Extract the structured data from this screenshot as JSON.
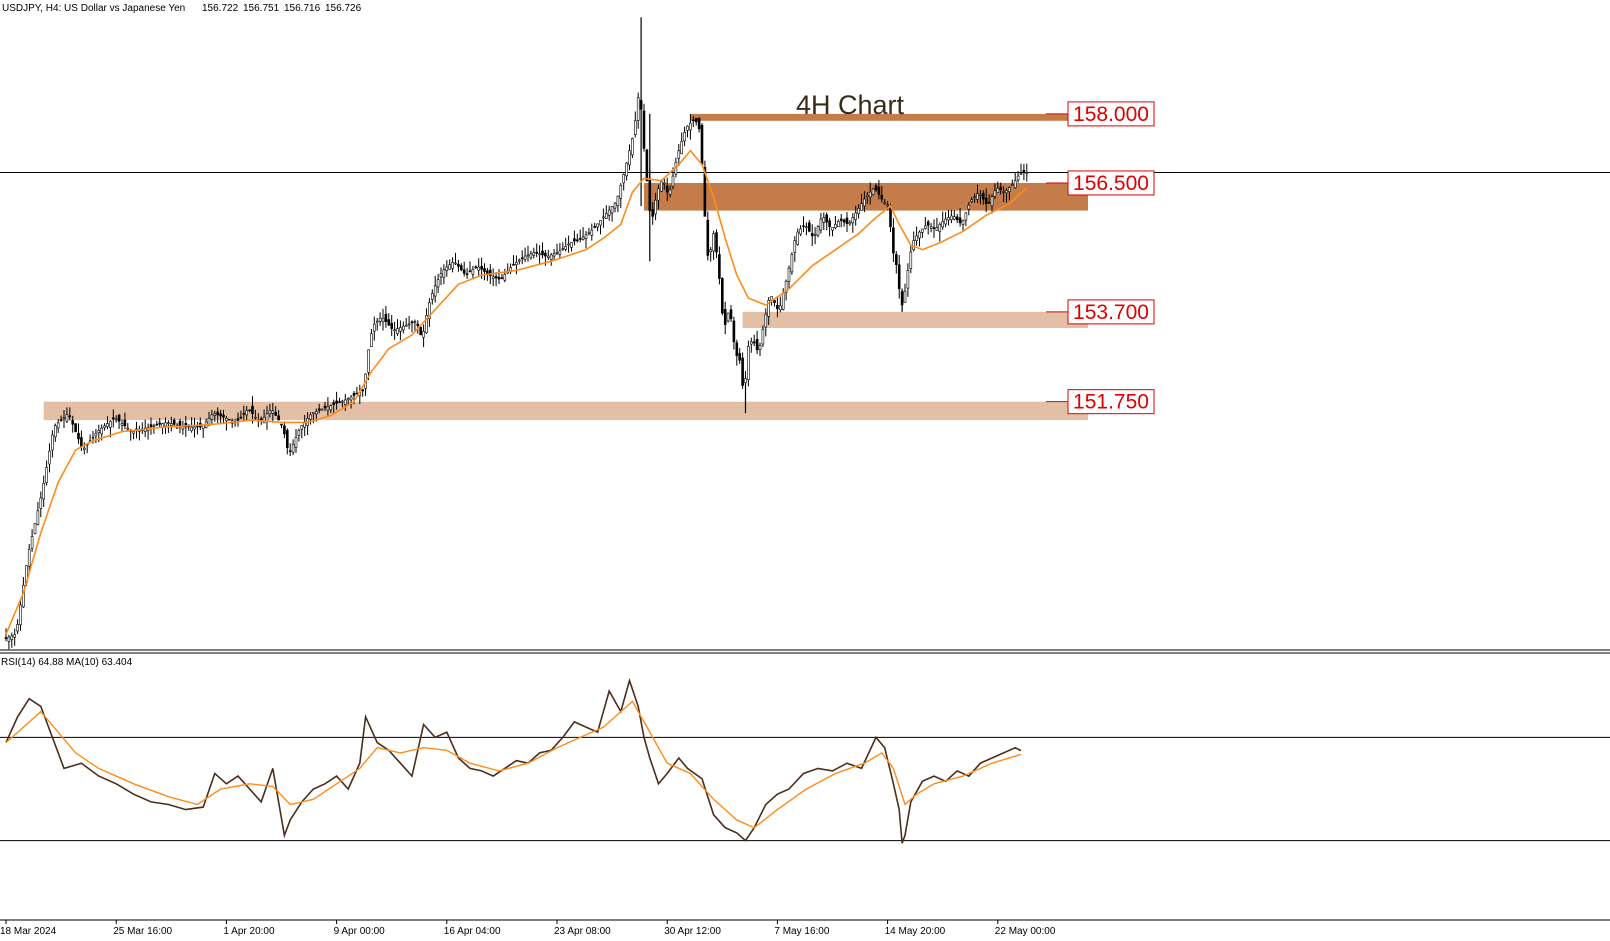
{
  "chart_data": [
    {
      "type": "candlestick",
      "symbol_info": "USDJPY, H4:  US Dollar vs Japanese Yen",
      "ohlc_readout": {
        "open": "156.722",
        "high": "156.751",
        "low": "156.716",
        "close": "156.726"
      },
      "annotation": "4H Chart",
      "levels": [
        {
          "label": "158.000",
          "value": 158.0,
          "zone": [
            158.0,
            157.85
          ],
          "color": "#c47c4a"
        },
        {
          "label": "156.500",
          "value": 156.5,
          "zone": [
            156.5,
            155.9
          ],
          "color": "#c47c4a"
        },
        {
          "label": "153.700",
          "value": 153.7,
          "zone": [
            153.7,
            153.35
          ],
          "color": "#e3bfa5"
        },
        {
          "label": "151.750",
          "value": 151.75,
          "zone": [
            151.75,
            151.35
          ],
          "color": "#e3bfa5"
        }
      ],
      "current_price": 156.726,
      "price_path": [
        [
          0,
          146.6
        ],
        [
          4,
          146.7
        ],
        [
          8,
          148.4
        ],
        [
          13,
          149.8
        ],
        [
          17,
          151.2
        ],
        [
          22,
          151.5
        ],
        [
          27,
          150.7
        ],
        [
          32,
          151.1
        ],
        [
          38,
          151.4
        ],
        [
          44,
          151.1
        ],
        [
          50,
          151.2
        ],
        [
          56,
          151.3
        ],
        [
          62,
          151.2
        ],
        [
          68,
          151.2
        ],
        [
          72,
          151.5
        ],
        [
          76,
          151.4
        ],
        [
          80,
          151.3
        ],
        [
          84,
          151.6
        ],
        [
          88,
          151.3
        ],
        [
          92,
          151.6
        ],
        [
          96,
          151.2
        ],
        [
          98,
          150.6
        ],
        [
          102,
          151.2
        ],
        [
          106,
          151.5
        ],
        [
          110,
          151.6
        ],
        [
          114,
          151.7
        ],
        [
          118,
          151.8
        ],
        [
          121,
          151.9
        ],
        [
          124,
          152.0
        ],
        [
          125,
          152.7
        ],
        [
          127,
          153.4
        ],
        [
          130,
          153.6
        ],
        [
          134,
          153.3
        ],
        [
          138,
          153.4
        ],
        [
          142,
          153.5
        ],
        [
          144,
          153.1
        ],
        [
          146,
          153.8
        ],
        [
          148,
          154.2
        ],
        [
          151,
          154.6
        ],
        [
          155,
          154.8
        ],
        [
          159,
          154.5
        ],
        [
          163,
          154.7
        ],
        [
          167,
          154.5
        ],
        [
          171,
          154.4
        ],
        [
          175,
          154.7
        ],
        [
          179,
          154.9
        ],
        [
          183,
          155.0
        ],
        [
          187,
          154.9
        ],
        [
          191,
          155.0
        ],
        [
          195,
          155.2
        ],
        [
          199,
          155.3
        ],
        [
          203,
          155.5
        ],
        [
          207,
          155.8
        ],
        [
          211,
          156.1
        ],
        [
          214,
          156.8
        ],
        [
          217,
          157.6
        ],
        [
          219,
          158.6
        ],
        [
          220,
          157.6
        ],
        [
          222,
          156.2
        ],
        [
          223,
          155.6
        ],
        [
          225,
          156.3
        ],
        [
          227,
          156.6
        ],
        [
          229,
          156.2
        ],
        [
          232,
          157.1
        ],
        [
          235,
          157.7
        ],
        [
          238,
          157.9
        ],
        [
          240,
          157.6
        ],
        [
          241,
          156.2
        ],
        [
          243,
          154.5
        ],
        [
          244,
          155.6
        ],
        [
          246,
          154.8
        ],
        [
          248,
          153.3
        ],
        [
          250,
          153.8
        ],
        [
          252,
          152.8
        ],
        [
          254,
          152.6
        ],
        [
          255,
          151.6
        ],
        [
          256,
          152.9
        ],
        [
          258,
          153.1
        ],
        [
          260,
          152.8
        ],
        [
          262,
          153.5
        ],
        [
          264,
          154.1
        ],
        [
          267,
          153.7
        ],
        [
          270,
          154.5
        ],
        [
          273,
          155.4
        ],
        [
          276,
          155.6
        ],
        [
          279,
          155.3
        ],
        [
          282,
          155.8
        ],
        [
          285,
          155.5
        ],
        [
          288,
          155.7
        ],
        [
          291,
          155.6
        ],
        [
          294,
          155.9
        ],
        [
          297,
          156.2
        ],
        [
          300,
          156.4
        ],
        [
          303,
          156.1
        ],
        [
          305,
          156.0
        ],
        [
          306,
          155.1
        ],
        [
          308,
          154.6
        ],
        [
          309,
          153.8
        ],
        [
          310,
          153.9
        ],
        [
          311,
          154.4
        ],
        [
          313,
          155.2
        ],
        [
          315,
          155.4
        ],
        [
          318,
          155.6
        ],
        [
          321,
          155.5
        ],
        [
          324,
          155.7
        ],
        [
          327,
          155.8
        ],
        [
          330,
          155.6
        ],
        [
          333,
          156.1
        ],
        [
          336,
          156.3
        ],
        [
          339,
          156.0
        ],
        [
          342,
          156.4
        ],
        [
          345,
          156.3
        ],
        [
          348,
          156.5
        ],
        [
          350,
          156.7
        ],
        [
          352,
          156.73
        ]
      ],
      "ma_path": [
        [
          0,
          146.7
        ],
        [
          6,
          147.6
        ],
        [
          12,
          148.9
        ],
        [
          18,
          150.0
        ],
        [
          24,
          150.7
        ],
        [
          30,
          150.9
        ],
        [
          40,
          151.1
        ],
        [
          55,
          151.2
        ],
        [
          70,
          151.25
        ],
        [
          85,
          151.35
        ],
        [
          95,
          151.3
        ],
        [
          104,
          151.3
        ],
        [
          112,
          151.45
        ],
        [
          120,
          151.75
        ],
        [
          126,
          152.4
        ],
        [
          132,
          152.9
        ],
        [
          140,
          153.2
        ],
        [
          148,
          153.75
        ],
        [
          156,
          154.3
        ],
        [
          164,
          154.5
        ],
        [
          176,
          154.6
        ],
        [
          188,
          154.8
        ],
        [
          200,
          155.05
        ],
        [
          206,
          155.3
        ],
        [
          212,
          155.6
        ],
        [
          216,
          156.3
        ],
        [
          220,
          156.6
        ],
        [
          226,
          156.55
        ],
        [
          232,
          156.9
        ],
        [
          236,
          157.2
        ],
        [
          240,
          156.9
        ],
        [
          244,
          156.2
        ],
        [
          248,
          155.3
        ],
        [
          252,
          154.5
        ],
        [
          256,
          154.0
        ],
        [
          262,
          153.85
        ],
        [
          270,
          154.2
        ],
        [
          278,
          154.7
        ],
        [
          286,
          155.05
        ],
        [
          294,
          155.4
        ],
        [
          300,
          155.75
        ],
        [
          305,
          156.0
        ],
        [
          308,
          155.6
        ],
        [
          312,
          155.15
        ],
        [
          316,
          155.05
        ],
        [
          322,
          155.2
        ],
        [
          330,
          155.45
        ],
        [
          338,
          155.8
        ],
        [
          346,
          156.05
        ],
        [
          352,
          156.4
        ]
      ],
      "wicks": [
        [
          219,
          156.0,
          160.1
        ],
        [
          222,
          154.8,
          158.0
        ],
        [
          255,
          151.5,
          152.3
        ],
        [
          309,
          153.7,
          154.2
        ]
      ],
      "x_axis": {
        "labels": [
          "18 Mar 2024",
          "25 Mar 16:00",
          "1 Apr 20:00",
          "9 Apr 00:00",
          "16 Apr 04:00",
          "23 Apr 08:00",
          "30 Apr 12:00",
          "7 May 16:00",
          "14 May 20:00",
          "22 May 00:00"
        ],
        "label_bars": [
          0,
          38,
          76,
          114,
          152,
          190,
          228,
          266,
          304,
          342
        ]
      },
      "ylim": [
        146.4,
        160.3
      ],
      "grid": false
    },
    {
      "type": "line",
      "indicator_info": "RSI(14) 64.88 MA(10) 63.404",
      "rsi": 64.88,
      "rsi_ma": 63.404,
      "levels": [
        70,
        30
      ],
      "ylim": [
        0,
        100
      ],
      "rsi_path": [
        [
          0,
          68
        ],
        [
          4,
          78
        ],
        [
          8,
          85
        ],
        [
          12,
          82
        ],
        [
          16,
          70
        ],
        [
          20,
          58
        ],
        [
          26,
          60
        ],
        [
          32,
          55
        ],
        [
          38,
          52
        ],
        [
          44,
          48
        ],
        [
          50,
          45
        ],
        [
          56,
          44
        ],
        [
          62,
          42
        ],
        [
          68,
          43
        ],
        [
          72,
          56
        ],
        [
          76,
          52
        ],
        [
          80,
          55
        ],
        [
          84,
          50
        ],
        [
          88,
          45
        ],
        [
          92,
          58
        ],
        [
          96,
          32
        ],
        [
          98,
          38
        ],
        [
          102,
          45
        ],
        [
          106,
          50
        ],
        [
          110,
          52
        ],
        [
          114,
          55
        ],
        [
          118,
          50
        ],
        [
          122,
          60
        ],
        [
          124,
          78
        ],
        [
          128,
          68
        ],
        [
          132,
          65
        ],
        [
          136,
          60
        ],
        [
          140,
          55
        ],
        [
          144,
          75
        ],
        [
          148,
          70
        ],
        [
          152,
          72
        ],
        [
          156,
          62
        ],
        [
          160,
          58
        ],
        [
          164,
          57
        ],
        [
          168,
          55
        ],
        [
          172,
          58
        ],
        [
          176,
          61
        ],
        [
          180,
          60
        ],
        [
          184,
          64
        ],
        [
          188,
          65
        ],
        [
          192,
          70
        ],
        [
          196,
          76
        ],
        [
          200,
          74
        ],
        [
          204,
          72
        ],
        [
          208,
          88
        ],
        [
          212,
          80
        ],
        [
          215,
          92
        ],
        [
          218,
          82
        ],
        [
          220,
          70
        ],
        [
          222,
          62
        ],
        [
          225,
          52
        ],
        [
          228,
          56
        ],
        [
          232,
          62
        ],
        [
          235,
          58
        ],
        [
          240,
          54
        ],
        [
          244,
          40
        ],
        [
          248,
          35
        ],
        [
          252,
          33
        ],
        [
          255,
          30
        ],
        [
          258,
          35
        ],
        [
          262,
          44
        ],
        [
          266,
          48
        ],
        [
          270,
          50
        ],
        [
          275,
          56
        ],
        [
          280,
          58
        ],
        [
          285,
          57
        ],
        [
          290,
          60
        ],
        [
          295,
          58
        ],
        [
          300,
          70
        ],
        [
          303,
          66
        ],
        [
          306,
          52
        ],
        [
          308,
          42
        ],
        [
          309,
          29
        ],
        [
          310,
          32
        ],
        [
          312,
          45
        ],
        [
          316,
          53
        ],
        [
          320,
          55
        ],
        [
          324,
          53
        ],
        [
          328,
          57
        ],
        [
          332,
          55
        ],
        [
          336,
          60
        ],
        [
          340,
          62
        ],
        [
          344,
          64
        ],
        [
          348,
          66
        ],
        [
          350,
          64.88
        ]
      ],
      "rsi_ma_path": [
        [
          0,
          68
        ],
        [
          6,
          74
        ],
        [
          12,
          80
        ],
        [
          18,
          72
        ],
        [
          24,
          64
        ],
        [
          32,
          58
        ],
        [
          44,
          52
        ],
        [
          56,
          47
        ],
        [
          66,
          44
        ],
        [
          74,
          50
        ],
        [
          84,
          52
        ],
        [
          92,
          51
        ],
        [
          98,
          44
        ],
        [
          106,
          46
        ],
        [
          114,
          52
        ],
        [
          122,
          58
        ],
        [
          128,
          66
        ],
        [
          136,
          64
        ],
        [
          144,
          66
        ],
        [
          152,
          65
        ],
        [
          160,
          60
        ],
        [
          170,
          57
        ],
        [
          180,
          60
        ],
        [
          190,
          66
        ],
        [
          198,
          70
        ],
        [
          206,
          74
        ],
        [
          212,
          80
        ],
        [
          216,
          84
        ],
        [
          220,
          76
        ],
        [
          228,
          60
        ],
        [
          236,
          56
        ],
        [
          244,
          46
        ],
        [
          252,
          38
        ],
        [
          258,
          35
        ],
        [
          266,
          42
        ],
        [
          276,
          50
        ],
        [
          286,
          56
        ],
        [
          296,
          60
        ],
        [
          302,
          64
        ],
        [
          306,
          58
        ],
        [
          310,
          44
        ],
        [
          314,
          48
        ],
        [
          320,
          52
        ],
        [
          330,
          55
        ],
        [
          340,
          60
        ],
        [
          350,
          63.404
        ]
      ]
    }
  ],
  "colors": {
    "bullish_body": "#ffffff",
    "bearish_body": "#000000",
    "candle_outline": "#000000",
    "ma_line": "#ff8c1a",
    "rsi_line": "#4a2e1e",
    "rsi_ma_line": "#ff8c1a",
    "level_label": "#e00000",
    "level_label_border": "#e00000",
    "annotation_text": "#3a2a1a"
  }
}
